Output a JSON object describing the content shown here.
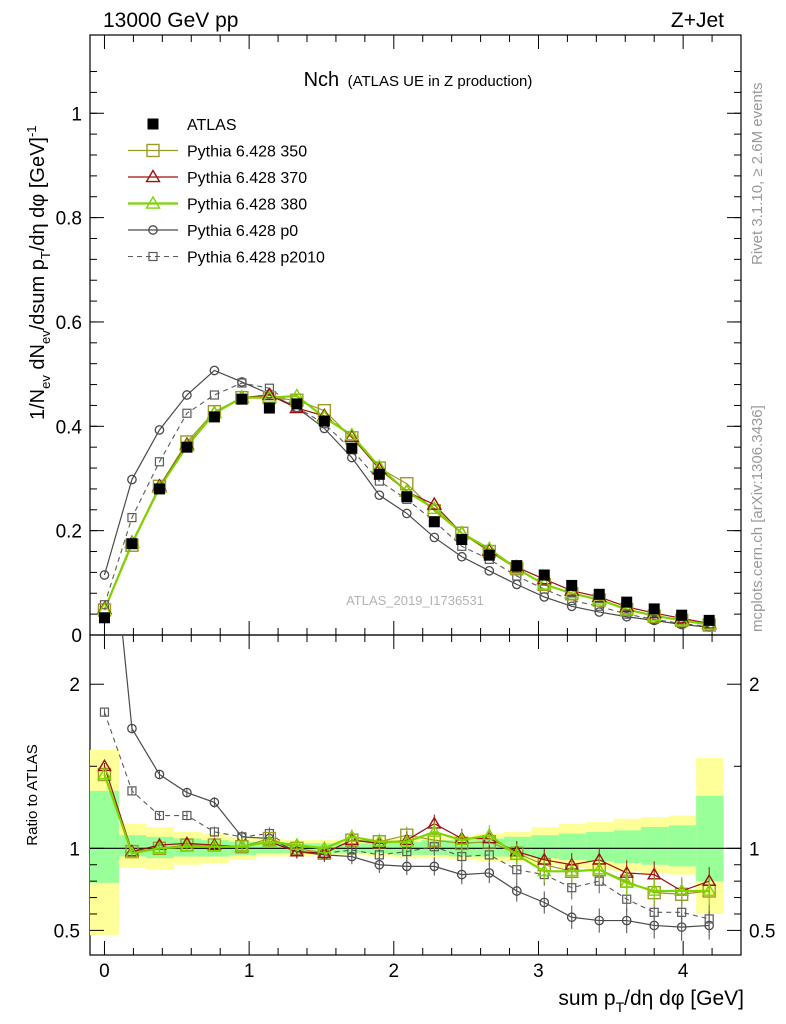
{
  "header": {
    "energy_label": "13000 GeV pp",
    "process_label": "Z+Jet",
    "plot_title": "Nch",
    "plot_subtitle": "(ATLAS UE in Z production)",
    "analysis_id": "ATLAS_2019_I1736531",
    "side_rivet": "Rivet 3.1.10, ≥ 2.6M events",
    "side_source": "mcplots.cern.ch [arXiv:1306.3436]"
  },
  "colors": {
    "atlas": "#000000",
    "p350": "#9b9b26",
    "p370": "#9b1010",
    "p380": "#7fd400",
    "p0": "#4a4a4a",
    "p2010": "#5a5a5a",
    "band_yellow": "#ffff99",
    "band_green": "#99ff99"
  },
  "chart_data": [
    {
      "type": "line",
      "name": "main",
      "ylabel": "1/N_ev dN_ev/dsum p_T/dη dφ [GeV]^-1",
      "xlim": [
        -0.1,
        4.4
      ],
      "ylim": [
        0,
        1.15
      ],
      "y_ticks": [
        0,
        0.2,
        0.4,
        0.6,
        0.8,
        1
      ],
      "y_tick_labels": [
        "0",
        "0.2",
        "0.4",
        "0.6",
        "0.8",
        "1"
      ],
      "legend_position": "top-left",
      "x": [
        0.0,
        0.19,
        0.38,
        0.57,
        0.76,
        0.95,
        1.14,
        1.33,
        1.52,
        1.71,
        1.9,
        2.09,
        2.28,
        2.47,
        2.66,
        2.85,
        3.04,
        3.23,
        3.42,
        3.61,
        3.8,
        3.99,
        4.18
      ],
      "series": [
        {
          "name": "ATLAS",
          "key": "atlas",
          "marker": "filled-square",
          "line": "none",
          "values": [
            0.033,
            0.175,
            0.28,
            0.36,
            0.418,
            0.452,
            0.435,
            0.443,
            0.41,
            0.358,
            0.308,
            0.265,
            0.217,
            0.183,
            0.153,
            0.133,
            0.115,
            0.095,
            0.078,
            0.063,
            0.05,
            0.038,
            0.028
          ]
        },
        {
          "name": "Pythia 6.428 350",
          "key": "p350",
          "marker": "open-square",
          "line": "solid",
          "values": [
            0.048,
            0.172,
            0.285,
            0.37,
            0.428,
            0.455,
            0.455,
            0.45,
            0.43,
            0.378,
            0.32,
            0.29,
            0.238,
            0.195,
            0.16,
            0.127,
            0.097,
            0.079,
            0.067,
            0.049,
            0.036,
            0.028,
            0.019
          ]
        },
        {
          "name": "Pythia 6.428 370",
          "key": "p370",
          "marker": "open-triangle",
          "line": "solid",
          "values": [
            0.05,
            0.177,
            0.285,
            0.365,
            0.425,
            0.455,
            0.46,
            0.435,
            0.42,
            0.38,
            0.318,
            0.275,
            0.25,
            0.195,
            0.162,
            0.13,
            0.107,
            0.085,
            0.073,
            0.054,
            0.042,
            0.032,
            0.022
          ]
        },
        {
          "name": "Pythia 6.428 380",
          "key": "p380",
          "marker": "open-triangle",
          "line": "solid-thick",
          "values": [
            0.048,
            0.176,
            0.282,
            0.362,
            0.425,
            0.455,
            0.455,
            0.458,
            0.417,
            0.383,
            0.322,
            0.275,
            0.242,
            0.195,
            0.165,
            0.127,
            0.097,
            0.08,
            0.068,
            0.049,
            0.037,
            0.028,
            0.02
          ]
        },
        {
          "name": "Pythia 6.428 p0",
          "key": "p0",
          "marker": "open-circle",
          "line": "solid",
          "values": [
            0.115,
            0.298,
            0.393,
            0.46,
            0.507,
            0.485,
            0.462,
            0.436,
            0.396,
            0.34,
            0.268,
            0.233,
            0.187,
            0.15,
            0.123,
            0.097,
            0.073,
            0.055,
            0.044,
            0.035,
            0.028,
            0.02,
            0.015
          ]
        },
        {
          "name": "Pythia 6.428 p2010",
          "key": "p2010",
          "marker": "open-square-small",
          "line": "dashed",
          "values": [
            0.058,
            0.225,
            0.332,
            0.425,
            0.46,
            0.483,
            0.473,
            0.436,
            0.405,
            0.355,
            0.295,
            0.26,
            0.218,
            0.17,
            0.145,
            0.113,
            0.088,
            0.066,
            0.055,
            0.04,
            0.03,
            0.022,
            0.016
          ]
        }
      ]
    },
    {
      "type": "line",
      "name": "ratio",
      "xlabel": "sum p_T/dη dφ [GeV]",
      "ylabel": "Ratio to ATLAS",
      "xlim": [
        -0.1,
        4.4
      ],
      "ylim": [
        0.35,
        2.3
      ],
      "x_ticks": [
        0,
        1,
        2,
        3,
        4
      ],
      "x_tick_labels": [
        "0",
        "1",
        "2",
        "3",
        "4"
      ],
      "y_ticks": [
        0.5,
        1,
        2
      ],
      "y_tick_labels": [
        "0.5",
        "1",
        "2"
      ],
      "band_edges": [
        -0.1,
        0.1,
        0.29,
        0.48,
        0.67,
        0.86,
        1.05,
        1.24,
        1.43,
        1.62,
        1.81,
        2.0,
        2.19,
        2.38,
        2.57,
        2.76,
        2.95,
        3.14,
        3.33,
        3.52,
        3.71,
        3.9,
        4.09,
        4.28
      ],
      "band_yellow": [
        [
          0.47,
          1.6
        ],
        [
          0.88,
          1.15
        ],
        [
          0.87,
          1.13
        ],
        [
          0.9,
          1.1
        ],
        [
          0.91,
          1.09
        ],
        [
          0.93,
          1.07
        ],
        [
          0.95,
          1.06
        ],
        [
          0.95,
          1.05
        ],
        [
          0.96,
          1.05
        ],
        [
          0.96,
          1.05
        ],
        [
          0.95,
          1.06
        ],
        [
          0.94,
          1.06
        ],
        [
          0.94,
          1.07
        ],
        [
          0.93,
          1.08
        ],
        [
          0.92,
          1.09
        ],
        [
          0.92,
          1.1
        ],
        [
          0.9,
          1.13
        ],
        [
          0.88,
          1.15
        ],
        [
          0.87,
          1.16
        ],
        [
          0.86,
          1.18
        ],
        [
          0.85,
          1.19
        ],
        [
          0.84,
          1.2
        ],
        [
          0.6,
          1.55
        ]
      ],
      "band_green": [
        [
          0.79,
          1.35
        ],
        [
          0.95,
          1.08
        ],
        [
          0.94,
          1.07
        ],
        [
          0.95,
          1.06
        ],
        [
          0.95,
          1.05
        ],
        [
          0.96,
          1.04
        ],
        [
          0.97,
          1.04
        ],
        [
          0.97,
          1.03
        ],
        [
          0.97,
          1.03
        ],
        [
          0.97,
          1.03
        ],
        [
          0.97,
          1.04
        ],
        [
          0.96,
          1.04
        ],
        [
          0.96,
          1.05
        ],
        [
          0.95,
          1.05
        ],
        [
          0.95,
          1.06
        ],
        [
          0.95,
          1.07
        ],
        [
          0.94,
          1.08
        ],
        [
          0.93,
          1.09
        ],
        [
          0.92,
          1.1
        ],
        [
          0.91,
          1.11
        ],
        [
          0.9,
          1.13
        ],
        [
          0.89,
          1.14
        ],
        [
          0.8,
          1.32
        ]
      ],
      "series": [
        {
          "name": "Pythia 6.428 350",
          "key": "p350",
          "values": [
            1.45,
            0.98,
            1.0,
            1.02,
            1.02,
            1.01,
            1.06,
            1.0,
            0.97,
            1.05,
            1.04,
            1.08,
            1.05,
            1.03,
            1.04,
            0.97,
            0.9,
            0.86,
            0.87,
            0.8,
            0.73,
            0.72,
            0.74
          ]
        },
        {
          "name": "Pythia 6.428 370",
          "key": "p370",
          "values": [
            1.5,
            0.98,
            1.02,
            1.03,
            1.02,
            1.01,
            1.04,
            0.98,
            0.97,
            1.05,
            1.03,
            1.05,
            1.15,
            1.06,
            1.06,
            0.98,
            0.93,
            0.9,
            0.93,
            0.85,
            0.84,
            0.74,
            0.8
          ]
        },
        {
          "name": "Pythia 6.428 380",
          "key": "p380",
          "values": [
            1.45,
            0.97,
            1.0,
            1.01,
            1.01,
            1.01,
            1.04,
            1.02,
            1.0,
            1.07,
            1.04,
            1.04,
            1.1,
            1.05,
            1.08,
            0.96,
            0.86,
            0.86,
            0.87,
            0.79,
            0.74,
            0.74,
            0.74
          ]
        },
        {
          "name": "Pythia 6.428 p0",
          "key": "p0",
          "values": [
            3.4,
            1.73,
            1.45,
            1.34,
            1.28,
            1.07,
            1.06,
            0.98,
            0.96,
            0.95,
            0.9,
            0.89,
            0.89,
            0.84,
            0.85,
            0.74,
            0.67,
            0.58,
            0.56,
            0.56,
            0.53,
            0.52,
            0.53
          ]
        },
        {
          "name": "Pythia 6.428 p2010",
          "key": "p2010",
          "values": [
            1.83,
            1.35,
            1.2,
            1.2,
            1.1,
            1.07,
            1.09,
            0.98,
            0.97,
            0.99,
            0.96,
            0.98,
            1.01,
            0.95,
            0.96,
            0.87,
            0.84,
            0.76,
            0.8,
            0.69,
            0.61,
            0.61,
            0.57
          ]
        }
      ]
    }
  ]
}
